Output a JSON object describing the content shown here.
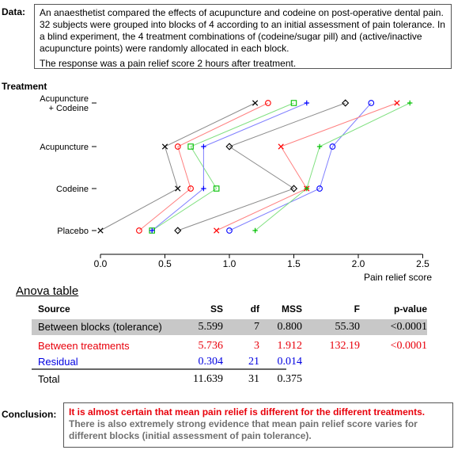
{
  "data_section": {
    "label": "Data:",
    "text1": "An anaesthetist compared the effects of acupuncture and codeine on post-operative dental pain. 32 subjects were grouped into blocks of 4 according to an initial assessment of pain tolerance. In a blind experiment, the 4 treatment combinations of (codeine/sugar pill) and (active/inactive acupuncture points) were randomly allocated in each block.",
    "text2": "The response was a pain relief score 2 hours after treatment."
  },
  "chart_data": {
    "type": "scatter",
    "title": "",
    "ylabel": "Treatment",
    "xlabel": "Pain relief score",
    "xlim": [
      0,
      2.5
    ],
    "xticks": [
      "0.0",
      "0.5",
      "1.0",
      "1.5",
      "2.0",
      "2.5"
    ],
    "categories": [
      "Acupuncture\n+ Codeine",
      "Acupuncture",
      "Codeine",
      "Placebo"
    ],
    "series": [
      {
        "marker": "x",
        "color": "#000000",
        "line_color": "#8c8c8c",
        "values": [
          1.2,
          0.5,
          0.6,
          0.0
        ]
      },
      {
        "marker": "circle",
        "color": "#ff0000",
        "line_color": "#ff8080",
        "values": [
          1.3,
          0.6,
          0.7,
          0.3
        ]
      },
      {
        "marker": "square",
        "color": "#00c000",
        "line_color": "#80e080",
        "values": [
          1.5,
          0.7,
          0.9,
          0.4
        ]
      },
      {
        "marker": "plus",
        "color": "#0000ff",
        "line_color": "#8080ff",
        "values": [
          1.6,
          0.8,
          0.8,
          0.4
        ]
      },
      {
        "marker": "diamond",
        "color": "#000000",
        "line_color": "#8c8c8c",
        "values": [
          1.9,
          1.0,
          1.5,
          0.6
        ]
      },
      {
        "marker": "circle",
        "color": "#0000ff",
        "line_color": "#8080ff",
        "values": [
          2.1,
          1.8,
          1.7,
          1.0
        ]
      },
      {
        "marker": "x",
        "color": "#ff0000",
        "line_color": "#ff8080",
        "values": [
          2.3,
          1.4,
          1.6,
          0.9
        ]
      },
      {
        "marker": "plus",
        "color": "#00c000",
        "line_color": "#80e080",
        "values": [
          2.4,
          1.7,
          1.6,
          1.2
        ]
      }
    ]
  },
  "anova": {
    "title": "Anova table",
    "headers": {
      "source": "Source",
      "ss": "SS",
      "df": "df",
      "mss": "MSS",
      "f": "F",
      "p": "p-value"
    },
    "rows": [
      {
        "source": "Between blocks (tolerance)",
        "ss": "5.599",
        "df": "7",
        "mss": "0.800",
        "f": "55.30",
        "p": "<0.0001"
      },
      {
        "source": "Between treatments",
        "ss": "5.736",
        "df": "3",
        "mss": "1.912",
        "f": "132.19",
        "p": "<0.0001"
      },
      {
        "source": "Residual",
        "ss": "0.304",
        "df": "21",
        "mss": "0.014",
        "f": "",
        "p": ""
      },
      {
        "source": "Total",
        "ss": "11.639",
        "df": "31",
        "mss": "0.375",
        "f": "",
        "p": ""
      }
    ]
  },
  "conclusion": {
    "label": "Conclusion:",
    "text_red": "It is almost certain that mean pain relief is different for the different treatments.",
    "text_grey": "There is also extremely strong evidence that mean pain relief score varies for different blocks (initial assessment of pain tolerance)."
  },
  "colors": {
    "red": "#e8000b",
    "blue": "#0000e0",
    "highlight": "#c8c8c8"
  }
}
